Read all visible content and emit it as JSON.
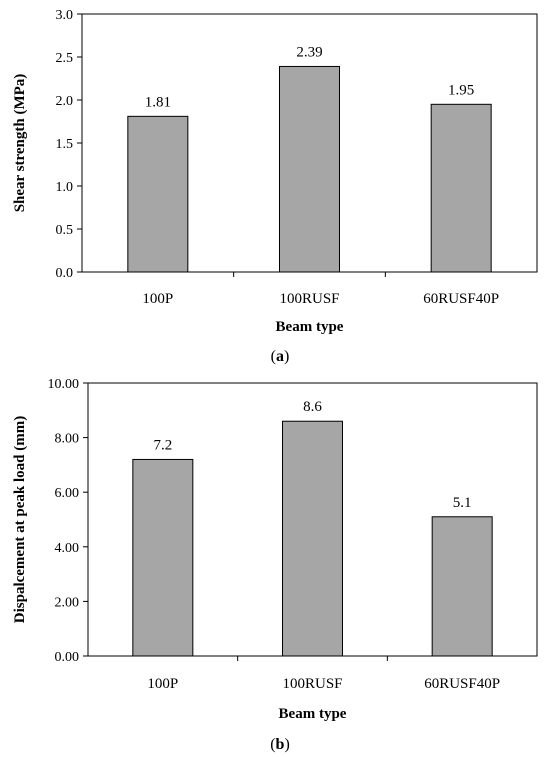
{
  "chart_data": [
    {
      "type": "bar",
      "panel": "a",
      "categories": [
        "100P",
        "100RUSF",
        "60RUSF40P"
      ],
      "values": [
        1.81,
        2.39,
        1.95
      ],
      "data_labels": [
        "1.81",
        "2.39",
        "1.95"
      ],
      "xlabel": "Beam type",
      "ylabel": "Shear strength (MPa)",
      "ylim": [
        0,
        3.0
      ],
      "yticks": [
        0,
        0.5,
        1.0,
        1.5,
        2.0,
        2.5,
        3.0
      ],
      "ytick_labels": [
        "0.0",
        "0.5",
        "1.0",
        "1.5",
        "2.0",
        "2.5",
        "3.0"
      ],
      "bar_color": "#a6a6a6",
      "grid": false,
      "legend": "none"
    },
    {
      "type": "bar",
      "panel": "b",
      "categories": [
        "100P",
        "100RUSF",
        "60RUSF40P"
      ],
      "values": [
        7.2,
        8.6,
        5.1
      ],
      "data_labels": [
        "7.2",
        "8.6",
        "5.1"
      ],
      "xlabel": "Beam type",
      "ylabel": "Dispalcement at peak load (mm)",
      "ylim": [
        0,
        10.0
      ],
      "yticks": [
        0,
        2,
        4,
        6,
        8,
        10
      ],
      "ytick_labels": [
        "0.00",
        "2.00",
        "4.00",
        "6.00",
        "8.00",
        "10.00"
      ],
      "bar_color": "#a6a6a6",
      "grid": false,
      "legend": "none"
    }
  ],
  "captions": {
    "a": {
      "open": "(",
      "letter": "a",
      "close": ")"
    },
    "b": {
      "open": "(",
      "letter": "b",
      "close": ")"
    }
  }
}
